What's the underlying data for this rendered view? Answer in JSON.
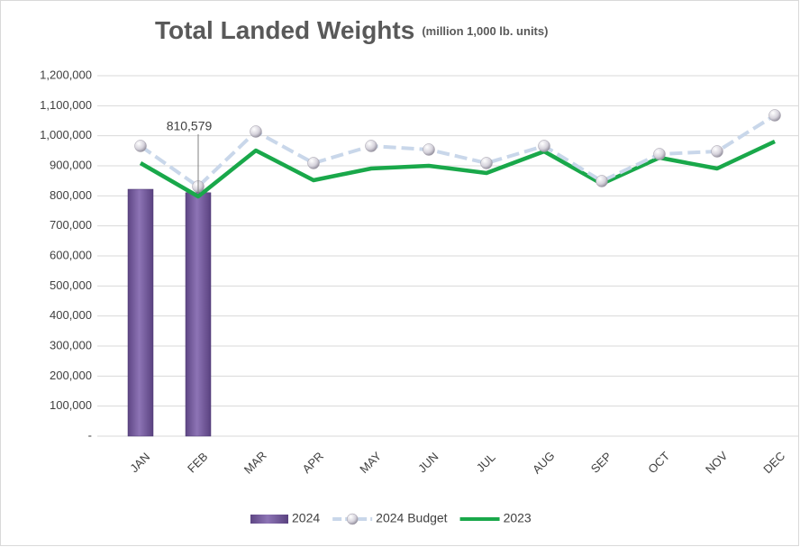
{
  "chart_data": {
    "type": "bar-line",
    "title": "Total Landed Weights",
    "subtitle": "(million 1,000 lb. units)",
    "categories": [
      "JAN",
      "FEB",
      "MAR",
      "APR",
      "MAY",
      "JUN",
      "JUL",
      "AUG",
      "SEP",
      "OCT",
      "NOV",
      "DEC"
    ],
    "series": [
      {
        "name": "2024",
        "type": "bar",
        "color": "#7b62a3",
        "values": [
          822000,
          810579,
          null,
          null,
          null,
          null,
          null,
          null,
          null,
          null,
          null,
          null
        ],
        "value_labels": [
          null,
          "810,579",
          null,
          null,
          null,
          null,
          null,
          null,
          null,
          null,
          null,
          null
        ]
      },
      {
        "name": "2024 Budget",
        "type": "line",
        "color": "#c9d7ea",
        "dashed": true,
        "markers": true,
        "values": [
          966000,
          831000,
          1014000,
          909000,
          966000,
          954000,
          909000,
          966000,
          849000,
          939000,
          948000,
          1068000
        ]
      },
      {
        "name": "2023",
        "type": "line",
        "color": "#19a84a",
        "dashed": false,
        "markers": false,
        "values": [
          909000,
          798000,
          951000,
          852000,
          891000,
          900000,
          876000,
          948000,
          840000,
          927000,
          891000,
          981000
        ]
      }
    ],
    "ylim": [
      0,
      1200000
    ],
    "yticks": [
      {
        "value": 0,
        "label": "-"
      },
      {
        "value": 100000,
        "label": "100,000"
      },
      {
        "value": 200000,
        "label": "200,000"
      },
      {
        "value": 300000,
        "label": "300,000"
      },
      {
        "value": 400000,
        "label": "400,000"
      },
      {
        "value": 500000,
        "label": "500,000"
      },
      {
        "value": 600000,
        "label": "600,000"
      },
      {
        "value": 700000,
        "label": "700,000"
      },
      {
        "value": 800000,
        "label": "800,000"
      },
      {
        "value": 900000,
        "label": "900,000"
      },
      {
        "value": 1000000,
        "label": "1,000,000"
      },
      {
        "value": 1100000,
        "label": "1,100,000"
      },
      {
        "value": 1200000,
        "label": "1,200,000"
      }
    ],
    "grid": true,
    "legend": "bottom"
  }
}
